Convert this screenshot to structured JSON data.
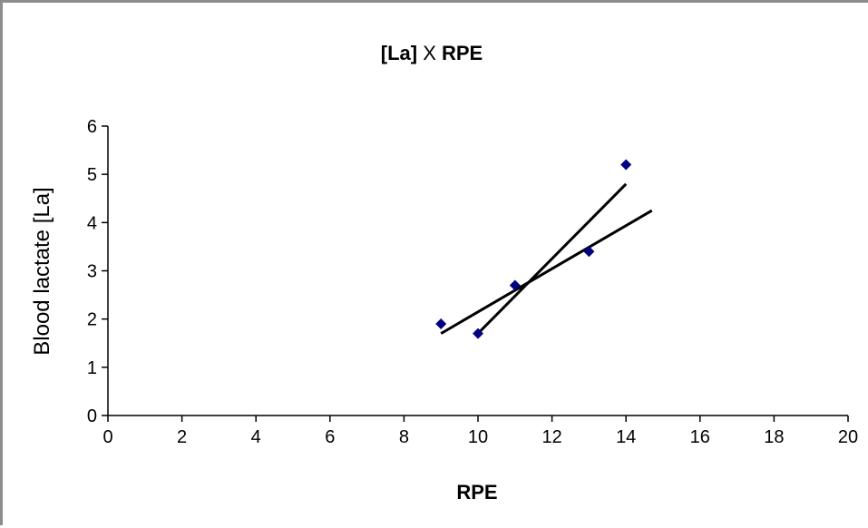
{
  "chart_data": {
    "type": "scatter",
    "title_bold_part_1": "[La]",
    "title_plain_part": " X ",
    "title_bold_part_2": "RPE",
    "xlabel": "RPE",
    "ylabel": "Blood lactate [La]",
    "xlim": [
      0,
      20
    ],
    "ylim": [
      0,
      6
    ],
    "xticks": [
      0,
      2,
      4,
      6,
      8,
      10,
      12,
      14,
      16,
      18,
      20
    ],
    "yticks": [
      0,
      1,
      2,
      3,
      4,
      5,
      6
    ],
    "grid": false,
    "legend": "none",
    "marker_color": "#000080",
    "line_color": "#000000",
    "points": [
      {
        "x": 9,
        "y": 1.9
      },
      {
        "x": 10,
        "y": 1.7
      },
      {
        "x": 11,
        "y": 2.7
      },
      {
        "x": 13,
        "y": 3.4
      },
      {
        "x": 14,
        "y": 5.2
      }
    ],
    "trendlines": [
      {
        "x1": 9,
        "y1": 1.7,
        "x2": 14.7,
        "y2": 4.25
      },
      {
        "x1": 10,
        "y1": 1.7,
        "x2": 14,
        "y2": 4.8
      }
    ]
  }
}
